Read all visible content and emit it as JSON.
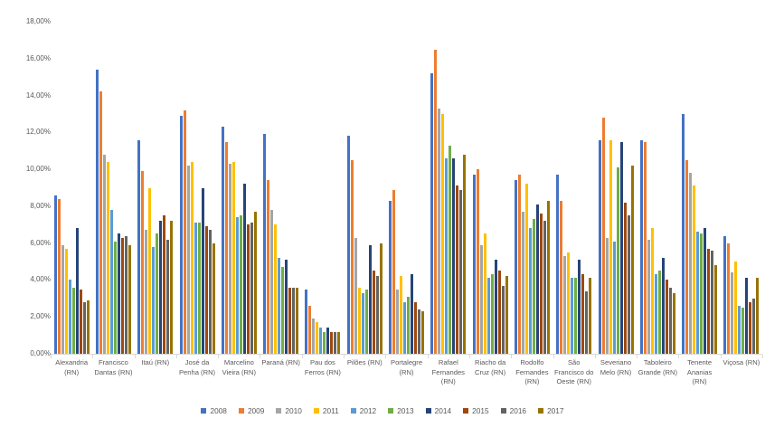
{
  "chart_data": {
    "type": "bar",
    "title": "",
    "value_format": "percent_comma_decimal",
    "grid": false,
    "legend_position": "bottom",
    "ylim": [
      0,
      18
    ],
    "y_tick_labels": [
      "0,00%",
      "2,00%",
      "4,00%",
      "6,00%",
      "8,00%",
      "10,00%",
      "12,00%",
      "14,00%",
      "16,00%",
      "18,00%"
    ],
    "categories": [
      "Alexandria (RN)",
      "Francisco Dantas (RN)",
      "Itaú (RN)",
      "José da Penha (RN)",
      "Marcelino Vieira (RN)",
      "Paraná (RN)",
      "Pau dos Ferros (RN)",
      "Pilões (RN)",
      "Portalegre (RN)",
      "Rafael Fernandes (RN)",
      "Riacho da Cruz (RN)",
      "Rodolfo Fernandes (RN)",
      "São Francisco do Oeste (RN)",
      "Severiano Melo (RN)",
      "Taboleiro Grande (RN)",
      "Tenente Ananias (RN)",
      "Viçosa (RN)"
    ],
    "series": [
      {
        "name": "2008",
        "color": "#4472C4",
        "values": [
          8.6,
          15.4,
          11.6,
          12.9,
          12.3,
          11.9,
          3.5,
          11.8,
          8.3,
          15.2,
          9.7,
          9.4,
          9.7,
          11.6,
          11.6,
          13.0,
          6.4
        ]
      },
      {
        "name": "2009",
        "color": "#ED7D31",
        "values": [
          8.4,
          14.2,
          9.9,
          13.2,
          11.5,
          9.4,
          2.6,
          10.5,
          8.9,
          16.5,
          10.0,
          9.7,
          8.3,
          12.8,
          11.5,
          10.5,
          6.0
        ]
      },
      {
        "name": "2010",
        "color": "#A5A5A5",
        "values": [
          5.9,
          10.8,
          6.7,
          10.2,
          10.3,
          7.8,
          1.9,
          6.3,
          3.5,
          13.3,
          5.9,
          7.7,
          5.3,
          6.3,
          6.2,
          9.8,
          4.4
        ]
      },
      {
        "name": "2011",
        "color": "#FFC000",
        "values": [
          5.7,
          10.4,
          9.0,
          10.4,
          10.4,
          7.0,
          1.7,
          3.6,
          4.2,
          13.0,
          6.5,
          9.2,
          5.5,
          11.6,
          6.8,
          9.1,
          5.0
        ]
      },
      {
        "name": "2012",
        "color": "#5B9BD5",
        "values": [
          4.0,
          7.8,
          5.8,
          7.1,
          7.4,
          5.2,
          1.4,
          3.3,
          2.8,
          10.6,
          4.1,
          6.8,
          4.1,
          6.1,
          4.3,
          6.6,
          2.6
        ]
      },
      {
        "name": "2013",
        "color": "#70AD47",
        "values": [
          3.6,
          6.1,
          6.5,
          7.1,
          7.5,
          4.7,
          1.2,
          3.5,
          3.1,
          11.3,
          4.3,
          7.3,
          4.1,
          10.1,
          4.5,
          6.5,
          2.5
        ]
      },
      {
        "name": "2014",
        "color": "#264478",
        "values": [
          6.8,
          6.5,
          7.2,
          9.0,
          9.2,
          5.1,
          1.4,
          5.9,
          4.3,
          10.6,
          5.1,
          8.1,
          5.1,
          11.5,
          5.2,
          6.8,
          4.1
        ]
      },
      {
        "name": "2015",
        "color": "#9E480E",
        "values": [
          3.5,
          6.3,
          7.5,
          6.9,
          7.0,
          3.6,
          1.2,
          4.5,
          2.8,
          9.1,
          4.5,
          7.6,
          4.3,
          8.2,
          4.0,
          5.7,
          2.8
        ]
      },
      {
        "name": "2016",
        "color": "#636363",
        "values": [
          2.8,
          6.4,
          6.2,
          6.7,
          7.1,
          3.6,
          1.2,
          4.2,
          2.4,
          8.9,
          3.7,
          7.2,
          3.4,
          7.5,
          3.6,
          5.6,
          3.0
        ]
      },
      {
        "name": "2017",
        "color": "#997300",
        "values": [
          2.9,
          5.9,
          7.2,
          6.0,
          7.7,
          3.6,
          1.2,
          6.0,
          2.3,
          10.8,
          4.2,
          8.3,
          4.1,
          10.2,
          3.3,
          4.8,
          4.1
        ]
      }
    ]
  }
}
